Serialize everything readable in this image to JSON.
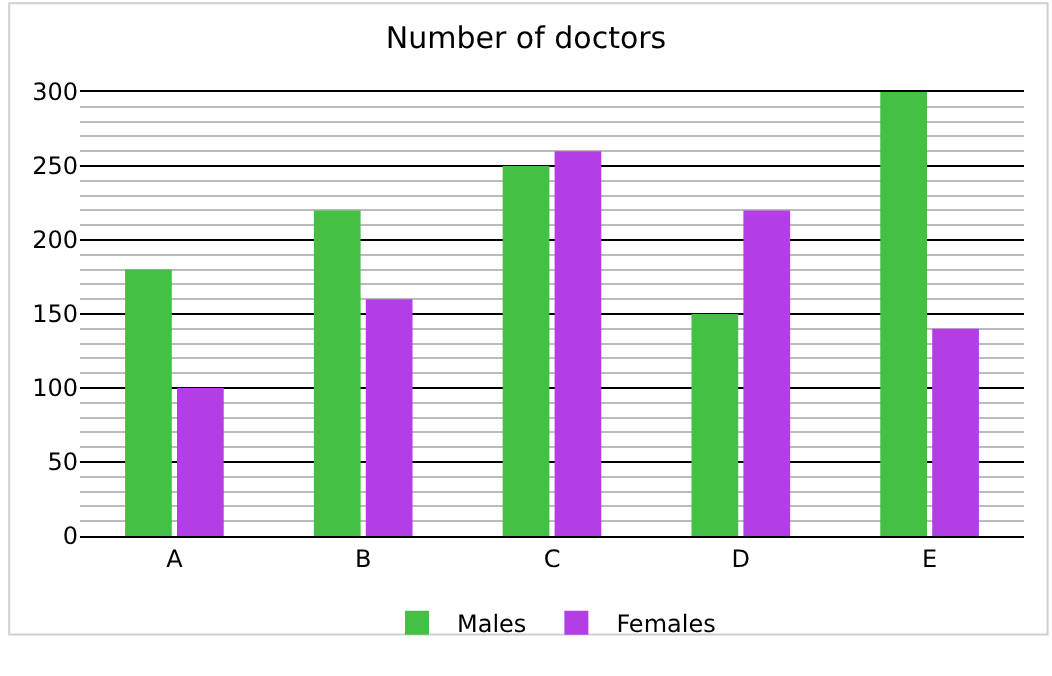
{
  "chart_data": {
    "type": "bar",
    "title": "Number of doctors",
    "categories": [
      "A",
      "B",
      "C",
      "D",
      "E"
    ],
    "series": [
      {
        "name": "Males",
        "color": "#44c044",
        "values": [
          180,
          220,
          250,
          150,
          300
        ]
      },
      {
        "name": "Females",
        "color": "#b43ee6",
        "values": [
          100,
          160,
          260,
          220,
          140
        ]
      }
    ],
    "ylim": [
      0,
      300
    ],
    "yticks": [
      0,
      50,
      100,
      150,
      200,
      250,
      300
    ],
    "grid": "y",
    "legend": "bottom"
  }
}
